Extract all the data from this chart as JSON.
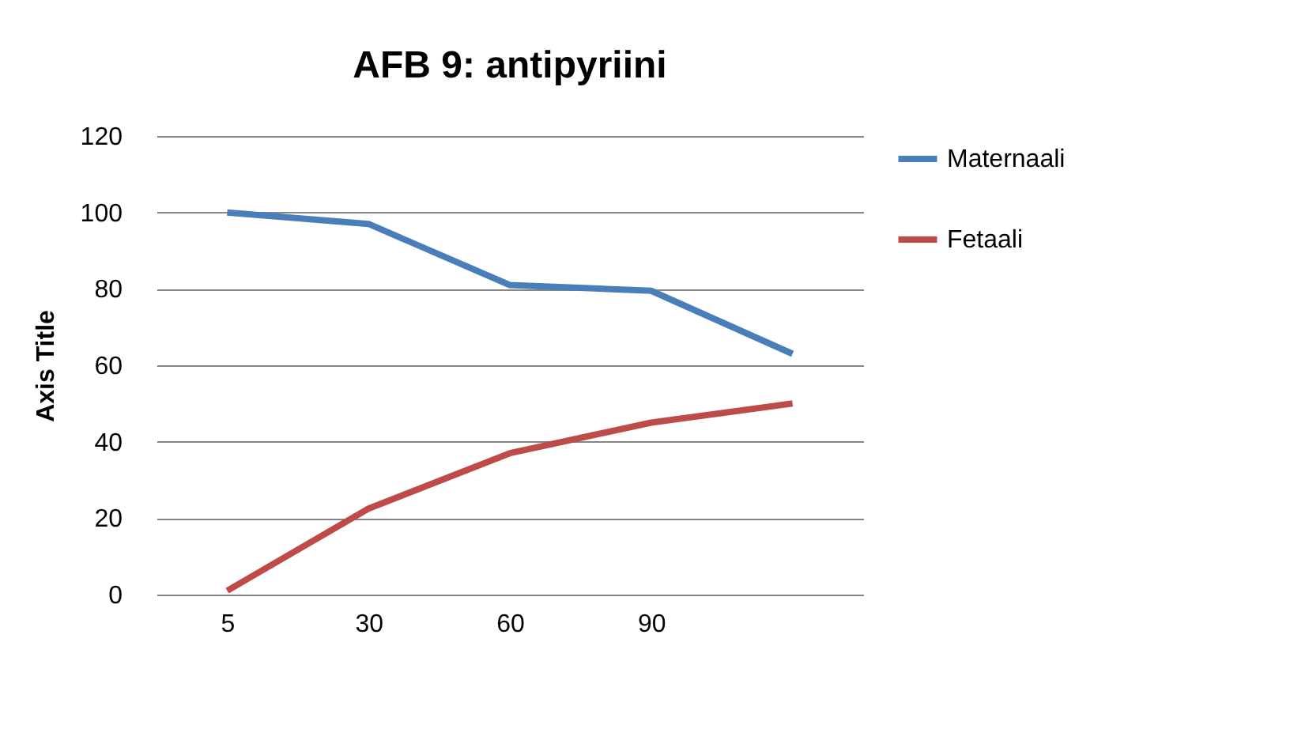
{
  "chart_data": {
    "type": "line",
    "title": "AFB 9: antipyriini",
    "ylabel": "Axis Title",
    "categories": [
      "5",
      "30",
      "60",
      "90",
      null
    ],
    "series": [
      {
        "name": "Maternaali",
        "color": "#4a7ebb",
        "values": [
          100,
          97,
          81,
          79.5,
          63
        ]
      },
      {
        "name": "Fetaali",
        "color": "#be4b48",
        "values": [
          1,
          22.5,
          37,
          45,
          50
        ]
      }
    ],
    "ylim": [
      0,
      120
    ],
    "yticks": [
      0,
      20,
      40,
      60,
      80,
      100,
      120
    ],
    "grid": "y",
    "legend": "right",
    "marker": "none",
    "line_style": "solid"
  }
}
